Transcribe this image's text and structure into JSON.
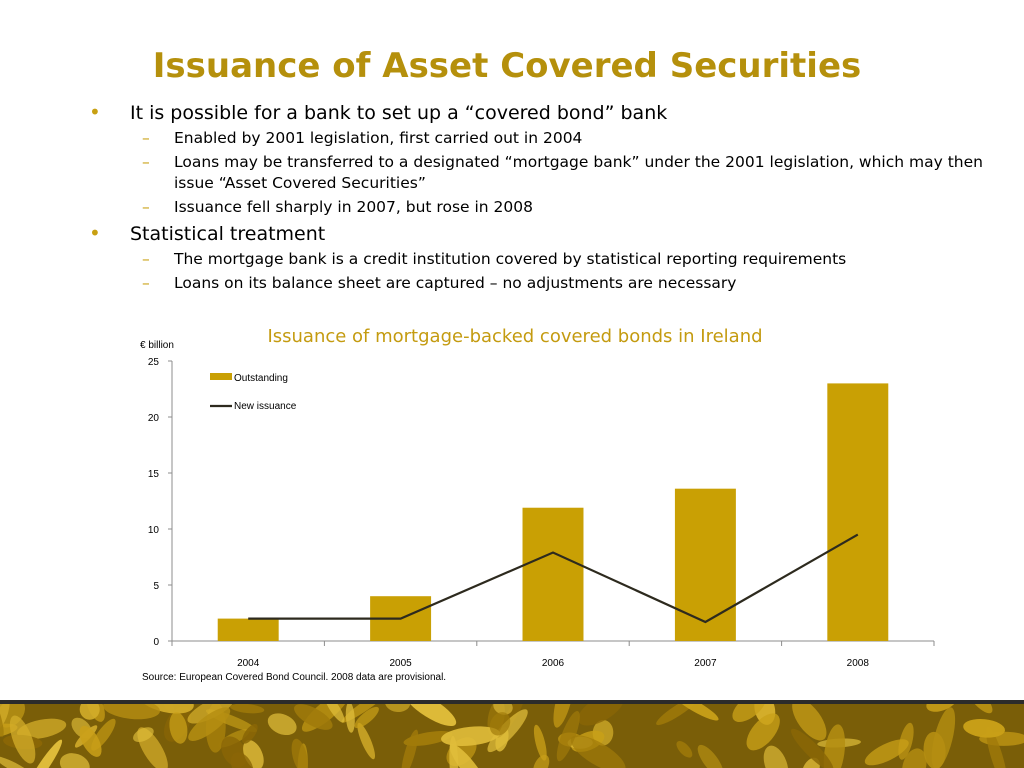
{
  "slide": {
    "title": "Issuance of Asset Covered Securities",
    "bullets": [
      {
        "text": "It is possible for a bank to set up a “covered bond” bank",
        "subs": [
          "Enabled by 2001 legislation, first carried out in 2004",
          "Loans may be transferred to a designated “mortgage bank” under the 2001 legislation, which may then issue “Asset Covered Securities”",
          "Issuance fell sharply in 2007, but rose in 2008"
        ]
      },
      {
        "text": "Statistical treatment",
        "subs": [
          "The mortgage bank is a credit institution covered by statistical reporting requirements",
          "Loans on its balance sheet are captured – no adjustments are necessary"
        ]
      }
    ],
    "source": "Source: European Covered Bond Council. 2008 data are provisional."
  },
  "colors": {
    "title": "#b5900c",
    "bar": "#c9a004",
    "line": "#2d2a1e",
    "footer": "#7a5e08"
  },
  "chart_data": {
    "type": "bar",
    "title": "Issuance of mortgage-backed covered bonds in Ireland",
    "ylabel": "€ billion",
    "xlabel": "",
    "categories": [
      "2004",
      "2005",
      "2006",
      "2007",
      "2008"
    ],
    "ylim": [
      0,
      25
    ],
    "yticks": [
      0,
      5,
      10,
      15,
      20,
      25
    ],
    "grid": false,
    "legend": "top-left",
    "series": [
      {
        "name": "Outstanding",
        "type": "bar",
        "values": [
          2.0,
          4.0,
          11.9,
          13.6,
          23.0
        ]
      },
      {
        "name": "New issuance",
        "type": "line",
        "values": [
          2.0,
          2.0,
          7.9,
          1.7,
          9.5
        ]
      }
    ]
  }
}
